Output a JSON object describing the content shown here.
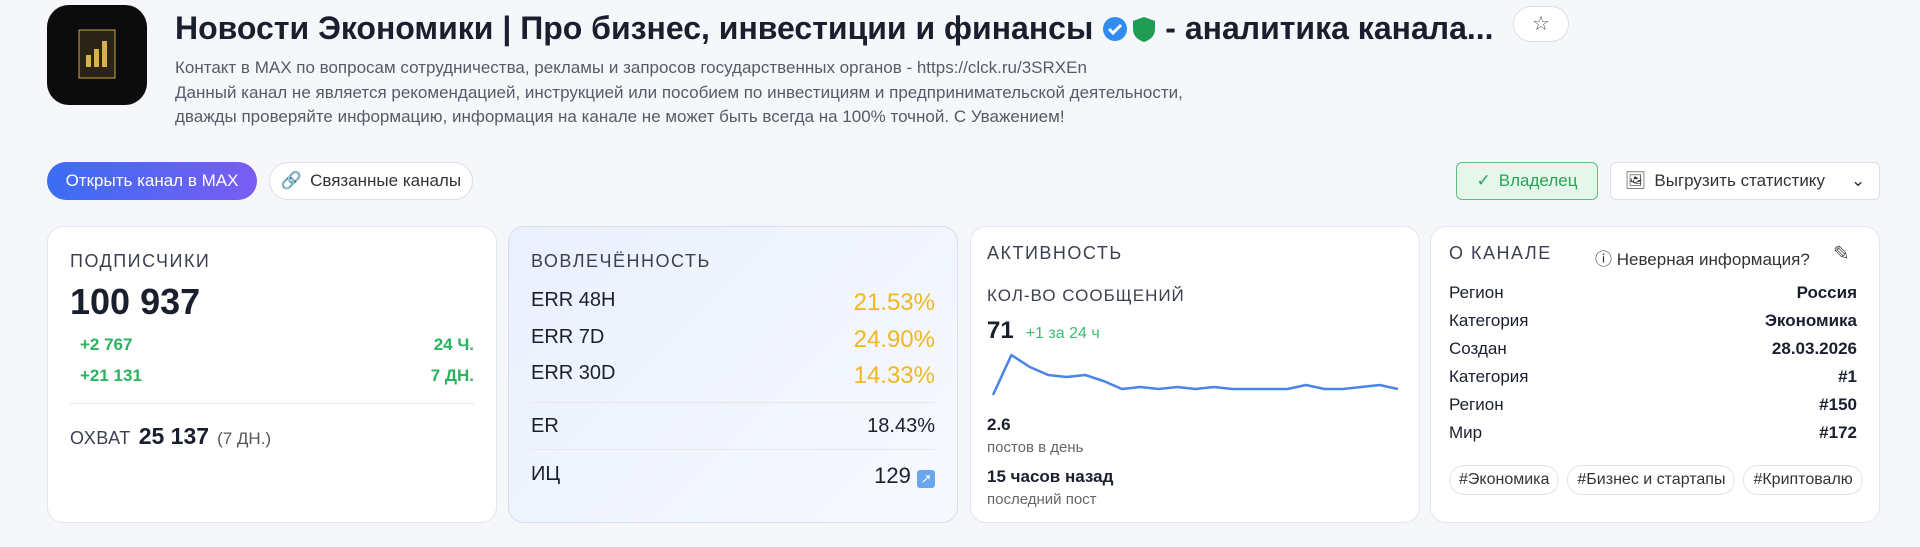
{
  "header": {
    "title": "Новости Экономики | Про бизнес, инвестиции и финансы",
    "title_suffix": "- аналитика канала...",
    "description": [
      "Контакт в MAX по вопросам сотрудничества, рекламы и запросов государственных органов - https://clck.ru/3SRXEn",
      "Данный канал не является рекомендацией, инструкцией или пособием по инвестициям и предпринимательской деятельности,",
      "дважды проверяйте информацию, информация на канале не может быть всегда на 100% точной. С Уважением!"
    ]
  },
  "buttons": {
    "open": "Открыть канал в MAX",
    "related": "Связанные каналы",
    "owner": "Владелец",
    "export": "Выгрузить статистику"
  },
  "subscribers": {
    "label": "ПОДПИСЧИКИ",
    "value": "100 937",
    "changes": [
      {
        "value": "+2 767",
        "period": "24 Ч."
      },
      {
        "value": "+21 131",
        "period": "7 ДН."
      }
    ],
    "reach_label": "ОХВАТ",
    "reach_value": "25 137",
    "reach_period": "(7 ДН.)"
  },
  "engagement": {
    "label": "ВОВЛЕЧЁННОСТЬ",
    "err": [
      {
        "label": "ERR 48H",
        "value": "21.53%"
      },
      {
        "label": "ERR 7D",
        "value": "24.90%"
      },
      {
        "label": "ERR 30D",
        "value": "14.33%"
      }
    ],
    "er_label": "ER",
    "er_value": "18.43%",
    "ic_label": "ИЦ",
    "ic_value": "129"
  },
  "activity": {
    "label": "АКТИВНОСТЬ",
    "messages_label": "КОЛ-ВО СООБЩЕНИЙ",
    "messages": "71",
    "delta": "+1 за 24 ч",
    "sparkline": [
      0,
      10,
      7,
      5,
      4.5,
      5,
      3.5,
      1.5,
      2,
      1.5,
      2,
      1.5,
      2,
      1.5,
      1.5,
      1.5,
      1.5,
      2.5,
      1.5,
      1.5,
      2,
      2.5,
      1.5
    ],
    "per_day": "2.6",
    "per_day_label": "постов в день",
    "last_post": "15 часов назад",
    "last_post_label": "последний пост"
  },
  "about": {
    "label": "О КАНАЛЕ",
    "report": "Неверная информация?",
    "rows": [
      {
        "label": "Регион",
        "value": "Россия"
      },
      {
        "label": "Категория",
        "value": "Экономика"
      },
      {
        "label": "Создан",
        "value": "28.03.2026"
      },
      {
        "label": "Категория",
        "value": "#1"
      },
      {
        "label": "Регион",
        "value": "#150"
      },
      {
        "label": "Мир",
        "value": "#172"
      }
    ],
    "tags": [
      "#Экономика",
      "#Бизнес и стартапы",
      "#Криптовалю"
    ]
  }
}
